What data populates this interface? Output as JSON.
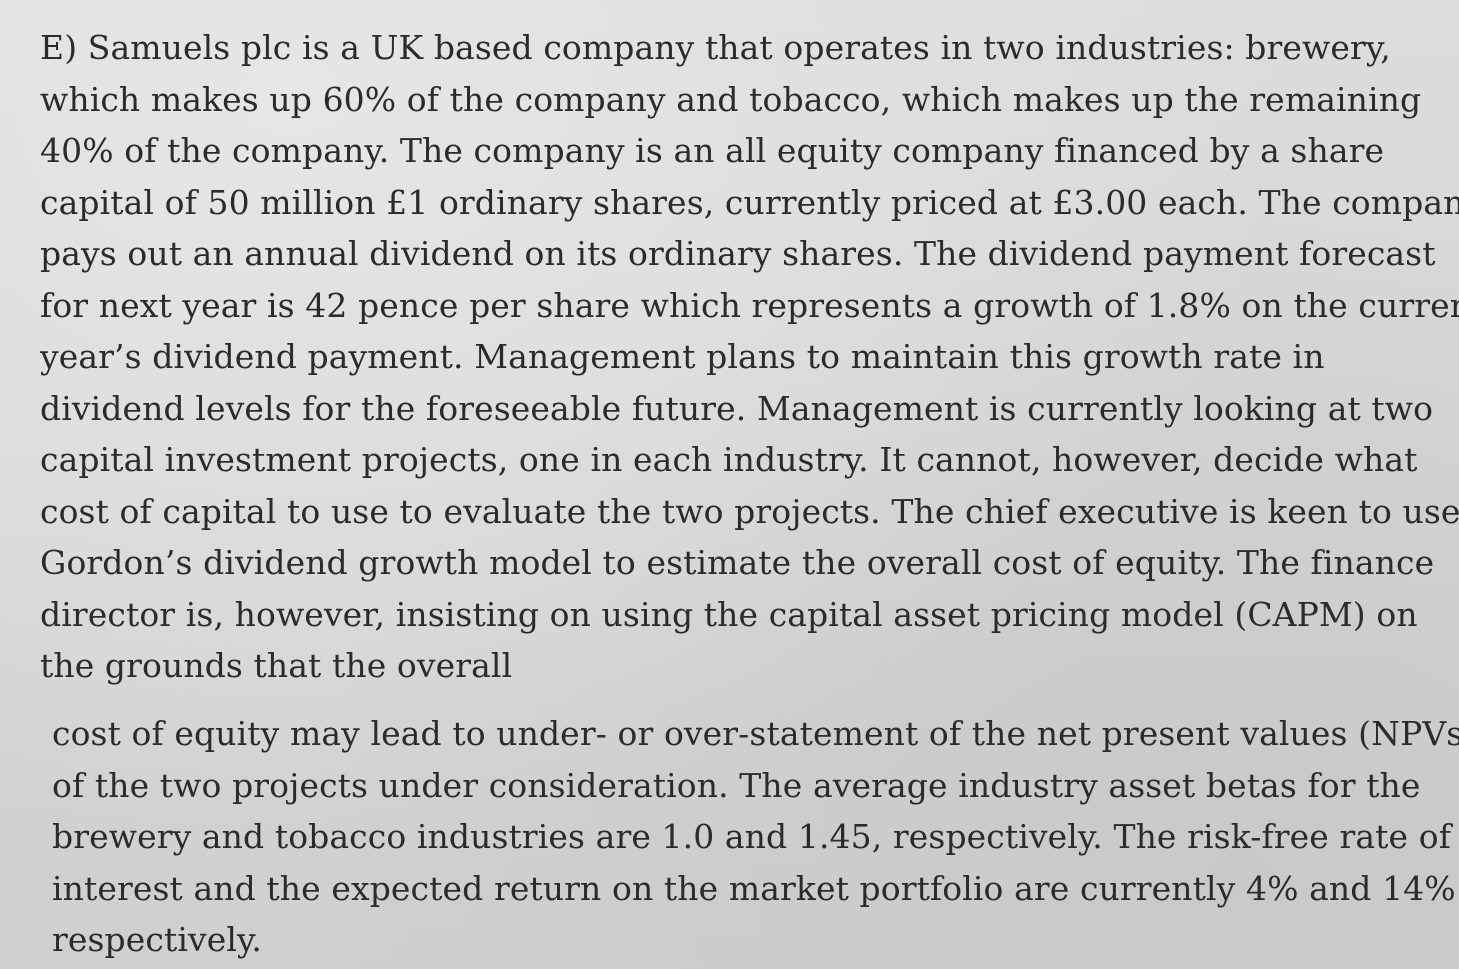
{
  "document": {
    "paragraph_1_lines": [
      "E) Samuels plc is a UK based company that operates in two industries: brewery,",
      "which makes up 60% of the company and tobacco, which makes up the remaining",
      "40% of the company. The company is an all equity company financed by a share",
      "capital of 50 million £1 ordinary shares, currently priced at £3.00 each. The company",
      "pays out an annual dividend on its ordinary shares. The dividend payment forecast",
      "for next year is 42 pence per share which represents a growth of 1.8% on the current",
      "year’s dividend payment. Management plans to maintain this growth rate in",
      "dividend levels for the foreseeable future. Management is currently looking at two",
      "capital investment projects, one in each industry. It cannot, however, decide what",
      "cost of capital to use to evaluate the two projects. The chief executive is keen to use",
      "Gordon’s dividend growth model to estimate the overall cost of equity. The finance",
      "director is, however, insisting on using the capital asset pricing model (CAPM) on",
      "the grounds that the overall"
    ],
    "paragraph_2_lines": [
      "cost of equity may lead to under- or over-statement of the net present values (NPVs)",
      "of the two projects under consideration. The average industry asset betas for the",
      "brewery and tobacco industries are 1.0 and 1.45, respectively. The risk-free rate of",
      "interest and the expected return on the market portfolio are currently 4% and 14%",
      "respectively."
    ]
  }
}
